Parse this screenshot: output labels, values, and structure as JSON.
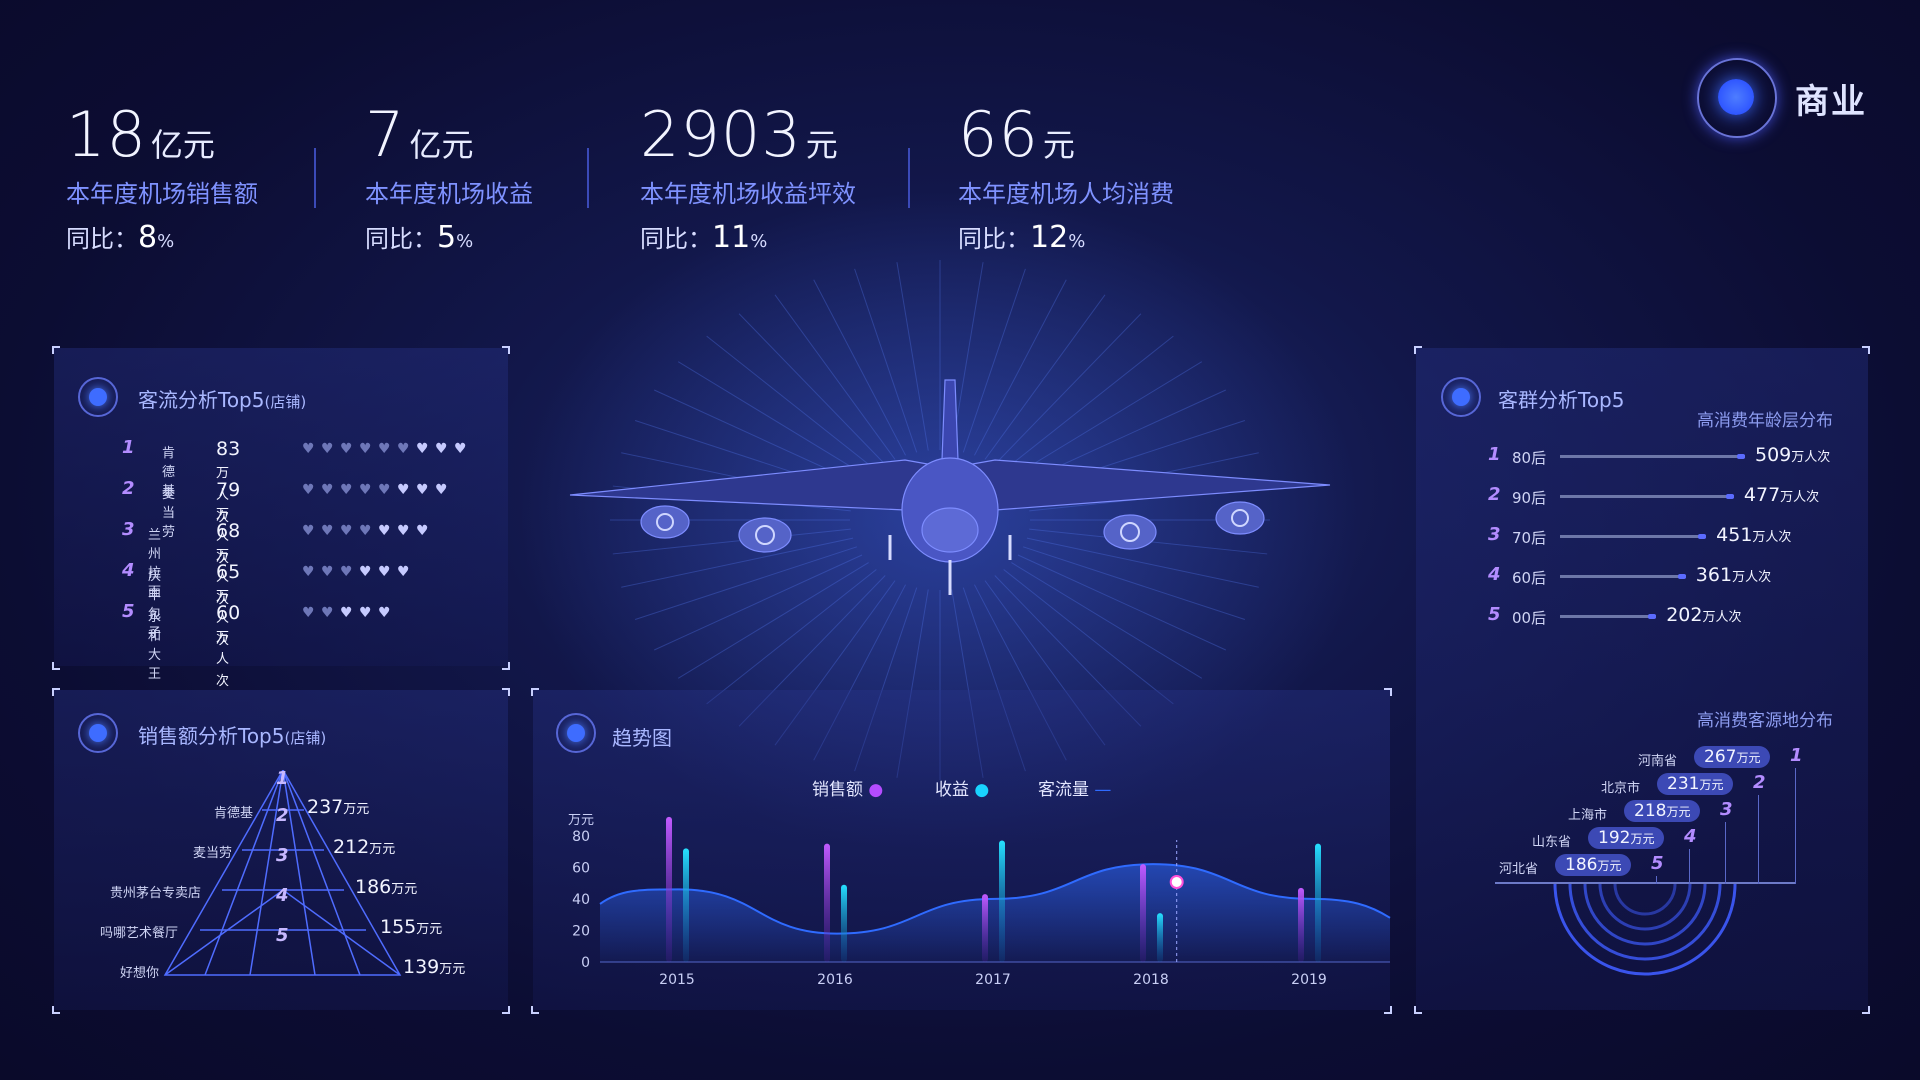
{
  "brand": {
    "title": "商业"
  },
  "kpis": [
    {
      "value": "18",
      "unit": "亿元",
      "name": "本年度机场销售额",
      "yoy_label": "同比：",
      "yoy_value": "8",
      "yoy_unit": "%"
    },
    {
      "value": "7",
      "unit": "亿元",
      "name": "本年度机场收益",
      "yoy_label": "同比：",
      "yoy_value": "5",
      "yoy_unit": "%"
    },
    {
      "value": "2903",
      "unit": "元",
      "name": "本年度机场收益坪效",
      "yoy_label": "同比：",
      "yoy_value": "11",
      "yoy_unit": "%"
    },
    {
      "value": "66",
      "unit": "元",
      "name": "本年度机场人均消费",
      "yoy_label": "同比：",
      "yoy_value": "12",
      "yoy_unit": "%"
    }
  ],
  "traffic": {
    "title": "客流分析Top5",
    "title_suffix": "(店铺)",
    "rows": [
      {
        "rank": "1",
        "shop": "肯德基",
        "value": "83",
        "unit": "万人次",
        "hearts": 9
      },
      {
        "rank": "2",
        "shop": "麦当劳",
        "value": "79",
        "unit": "万人次",
        "hearts": 8
      },
      {
        "rank": "3",
        "shop": "兰州拉面",
        "value": "68",
        "unit": "万人次",
        "hearts": 7
      },
      {
        "rank": "4",
        "shop": "庆丰包子",
        "value": "65",
        "unit": "万人次",
        "hearts": 6
      },
      {
        "rank": "5",
        "shop": "永和大王",
        "value": "60",
        "unit": "万人次",
        "hearts": 5
      }
    ]
  },
  "sales": {
    "title": "销售额分析Top5",
    "title_suffix": "(店铺)",
    "rows": [
      {
        "rank": "1",
        "shop": "肯德基",
        "value": "237",
        "unit": "万元"
      },
      {
        "rank": "2",
        "shop": "麦当劳",
        "value": "212",
        "unit": "万元"
      },
      {
        "rank": "3",
        "shop": "贵州茅台专卖店",
        "value": "186",
        "unit": "万元"
      },
      {
        "rank": "4",
        "shop": "吗哪艺术餐厅",
        "value": "155",
        "unit": "万元"
      },
      {
        "rank": "5",
        "shop": "好想你",
        "value": "139",
        "unit": "万元"
      }
    ]
  },
  "trend": {
    "title": "趋势图",
    "legend": [
      "销售额",
      "收益",
      "客流量"
    ],
    "colors": {
      "sales": "#b44cff",
      "revenue": "#19d3ff",
      "traffic": "#2f6bff"
    }
  },
  "customers": {
    "title": "客群分析Top5",
    "age_title": "高消费年龄层分布",
    "age_rows": [
      {
        "rank": "1",
        "label": "80后",
        "value": "509",
        "unit": "万人次",
        "fraction": 1.0
      },
      {
        "rank": "2",
        "label": "90后",
        "value": "477",
        "unit": "万人次",
        "fraction": 0.94
      },
      {
        "rank": "3",
        "label": "70后",
        "value": "451",
        "unit": "万人次",
        "fraction": 0.79
      },
      {
        "rank": "4",
        "label": "60后",
        "value": "361",
        "unit": "万人次",
        "fraction": 0.68
      },
      {
        "rank": "5",
        "label": "00后",
        "value": "202",
        "unit": "万人次",
        "fraction": 0.52
      }
    ],
    "origin_title": "高消费客源地分布",
    "origin_rows": [
      {
        "rank": "1",
        "label": "河南省",
        "value": "267",
        "unit": "万元"
      },
      {
        "rank": "2",
        "label": "北京市",
        "value": "231",
        "unit": "万元"
      },
      {
        "rank": "3",
        "label": "上海市",
        "value": "218",
        "unit": "万元"
      },
      {
        "rank": "4",
        "label": "山东省",
        "value": "192",
        "unit": "万元"
      },
      {
        "rank": "5",
        "label": "河北省",
        "value": "186",
        "unit": "万元"
      }
    ]
  },
  "chart_data": {
    "type": "bar",
    "ylabel": "万元",
    "ylim": [
      0,
      90
    ],
    "yticks": [
      0,
      20,
      40,
      60,
      80
    ],
    "categories": [
      "2015",
      "2016",
      "2017",
      "2018",
      "2019"
    ],
    "series": [
      {
        "name": "销售额",
        "values": [
          92,
          75,
          43,
          62,
          47
        ]
      },
      {
        "name": "收益",
        "values": [
          72,
          49,
          77,
          31,
          75
        ]
      },
      {
        "name": "客流量",
        "values": [
          46,
          18,
          40,
          62,
          40
        ]
      }
    ]
  }
}
